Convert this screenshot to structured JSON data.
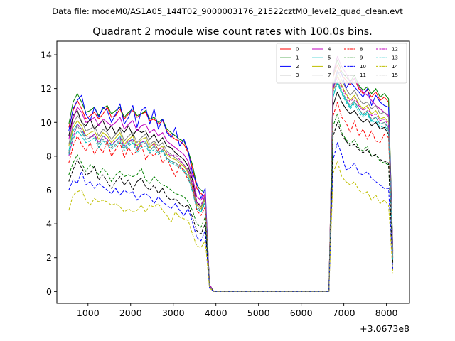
{
  "suptitle": "Data file: modeM0/AS1A05_144T02_9000003176_21522cztM0_level2_quad_clean.evt",
  "chart_data": {
    "type": "line",
    "title": "Quadrant 2 module wise count rates with 100.0s bins.",
    "xlabel": "",
    "ylabel": "",
    "x_offset_label": "+3.0673e8",
    "xlim": [
      270,
      8540
    ],
    "ylim": [
      -0.7,
      14.8
    ],
    "xticks": [
      1000,
      2000,
      3000,
      4000,
      5000,
      6000,
      7000,
      8000
    ],
    "xtick_labels": [
      "1000",
      "2000",
      "3000",
      "4000",
      "5000",
      "6000",
      "7000",
      "8000"
    ],
    "yticks": [
      0,
      2,
      4,
      6,
      8,
      10,
      12,
      14
    ],
    "ytick_labels": [
      "0",
      "2",
      "4",
      "6",
      "8",
      "10",
      "12",
      "14"
    ],
    "grid": false,
    "legend_position": "top-right",
    "legend_columns": 4,
    "x": [
      550,
      650,
      750,
      850,
      950,
      1050,
      1150,
      1250,
      1350,
      1450,
      1550,
      1650,
      1750,
      1850,
      1950,
      2050,
      2150,
      2250,
      2350,
      2450,
      2550,
      2650,
      2750,
      2850,
      2950,
      3050,
      3150,
      3250,
      3350,
      3450,
      3550,
      3650,
      3750,
      3850,
      3950,
      4050,
      6650,
      6750,
      6850,
      6950,
      7050,
      7150,
      7250,
      7350,
      7450,
      7550,
      7650,
      7750,
      7850,
      7950,
      8050,
      8150
    ],
    "series": [
      {
        "name": "0",
        "color": "#ff0000",
        "dash": "solid",
        "values": [
          9.7,
          10.7,
          11.3,
          10.8,
          10.2,
          10.4,
          10.6,
          10.2,
          10.5,
          10.9,
          10.3,
          10.4,
          10.8,
          10.2,
          10.5,
          10.7,
          10.3,
          10.5,
          10.6,
          10.1,
          10.2,
          9.9,
          10.1,
          9.5,
          9.2,
          9.0,
          8.9,
          8.7,
          8.2,
          7.3,
          6.1,
          5.8,
          5.6,
          0.4,
          0.0,
          0.0,
          0.0,
          12.7,
          13.4,
          12.8,
          12.5,
          12.2,
          12.6,
          12.0,
          11.7,
          11.9,
          11.5,
          11.8,
          11.3,
          11.5,
          11.2,
          2.4
        ]
      },
      {
        "name": "1",
        "color": "#008000",
        "dash": "solid",
        "values": [
          9.9,
          11.2,
          11.7,
          11.2,
          10.6,
          10.7,
          10.9,
          10.4,
          10.8,
          11.0,
          10.5,
          10.7,
          10.9,
          10.3,
          10.6,
          10.8,
          10.4,
          10.5,
          10.7,
          10.2,
          10.3,
          10.0,
          10.2,
          9.6,
          9.4,
          9.2,
          9.0,
          8.9,
          8.3,
          7.5,
          6.3,
          6.0,
          5.8,
          0.4,
          0.0,
          0.0,
          0.0,
          12.8,
          13.7,
          13.0,
          12.7,
          12.4,
          12.8,
          12.2,
          11.9,
          12.1,
          11.7,
          12.0,
          11.5,
          11.7,
          11.4,
          2.5
        ]
      },
      {
        "name": "2",
        "color": "#0000ff",
        "dash": "solid",
        "values": [
          9.5,
          10.8,
          11.3,
          11.6,
          10.5,
          10.1,
          10.9,
          10.3,
          10.9,
          10.7,
          10.0,
          10.5,
          11.1,
          9.9,
          10.3,
          11.0,
          9.7,
          10.7,
          10.9,
          9.9,
          10.8,
          9.6,
          10.2,
          9.4,
          9.1,
          9.7,
          8.6,
          9.0,
          8.3,
          7.0,
          6.4,
          5.5,
          6.1,
          0.4,
          0.0,
          0.0,
          0.0,
          12.0,
          13.0,
          12.9,
          12.0,
          12.4,
          12.1,
          11.8,
          11.5,
          12.0,
          11.0,
          11.6,
          11.2,
          11.0,
          10.9,
          2.3
        ]
      },
      {
        "name": "3",
        "color": "#000000",
        "dash": "solid",
        "values": [
          9.2,
          10.4,
          10.7,
          10.0,
          9.8,
          10.2,
          9.6,
          9.9,
          10.1,
          9.5,
          9.8,
          9.3,
          9.7,
          9.4,
          9.8,
          9.2,
          9.6,
          9.4,
          9.5,
          9.0,
          9.3,
          8.8,
          9.1,
          8.6,
          8.5,
          8.2,
          8.0,
          7.8,
          7.4,
          6.6,
          5.3,
          5.0,
          5.6,
          0.4,
          0.0,
          0.0,
          0.0,
          11.0,
          11.8,
          11.2,
          10.8,
          10.5,
          10.7,
          10.3,
          10.0,
          10.2,
          9.8,
          10.0,
          9.6,
          9.7,
          9.3,
          2.2
        ]
      },
      {
        "name": "4",
        "color": "#bf00bf",
        "dash": "solid",
        "values": [
          9.0,
          10.2,
          10.9,
          10.6,
          10.0,
          10.1,
          10.3,
          9.8,
          10.2,
          10.0,
          9.8,
          10.0,
          10.3,
          9.6,
          9.9,
          10.1,
          9.5,
          9.8,
          9.9,
          9.4,
          9.6,
          9.2,
          9.4,
          8.9,
          8.7,
          8.5,
          8.3,
          8.1,
          7.7,
          6.8,
          5.6,
          5.4,
          5.8,
          0.4,
          0.0,
          0.0,
          0.0,
          12.9,
          13.9,
          13.3,
          12.9,
          12.4,
          12.6,
          12.1,
          11.8,
          11.6,
          11.3,
          11.0,
          10.8,
          10.6,
          10.4,
          2.4
        ]
      },
      {
        "name": "5",
        "color": "#00bfbf",
        "dash": "solid",
        "values": [
          8.3,
          9.5,
          9.9,
          9.6,
          9.0,
          9.1,
          9.3,
          8.7,
          9.2,
          9.0,
          8.6,
          8.9,
          9.2,
          8.5,
          8.8,
          9.0,
          8.4,
          8.8,
          8.9,
          8.3,
          8.6,
          8.2,
          8.4,
          7.9,
          7.7,
          7.6,
          7.4,
          7.2,
          6.8,
          6.0,
          4.9,
          4.7,
          5.3,
          0.3,
          0.0,
          0.0,
          0.0,
          11.5,
          12.4,
          11.8,
          11.3,
          10.9,
          11.2,
          10.8,
          10.4,
          10.6,
          10.1,
          10.3,
          9.9,
          10.0,
          9.7,
          2.0
        ]
      },
      {
        "name": "6",
        "color": "#bfbf00",
        "dash": "solid",
        "values": [
          8.6,
          9.7,
          10.1,
          9.8,
          9.2,
          9.4,
          9.5,
          9.0,
          9.4,
          9.2,
          8.8,
          9.1,
          9.4,
          8.7,
          9.0,
          9.2,
          8.6,
          9.0,
          9.1,
          8.5,
          8.8,
          8.4,
          8.6,
          8.1,
          7.9,
          7.8,
          7.6,
          7.4,
          7.0,
          6.2,
          5.1,
          4.9,
          5.5,
          0.3,
          0.0,
          0.0,
          0.0,
          11.9,
          12.8,
          12.2,
          11.7,
          11.3,
          11.6,
          11.1,
          10.8,
          11.0,
          10.5,
          10.7,
          10.2,
          10.3,
          10.0,
          2.1
        ]
      },
      {
        "name": "7",
        "color": "#808080",
        "dash": "solid",
        "values": [
          8.7,
          9.9,
          10.4,
          10.1,
          9.5,
          9.6,
          9.8,
          9.2,
          9.6,
          9.4,
          9.0,
          9.3,
          9.6,
          8.9,
          9.2,
          9.4,
          8.8,
          9.1,
          9.3,
          8.7,
          8.9,
          8.6,
          8.8,
          8.3,
          8.1,
          7.9,
          7.7,
          7.5,
          7.1,
          6.3,
          5.2,
          5.0,
          5.6,
          0.3,
          0.0,
          0.0,
          0.0,
          12.2,
          13.1,
          12.5,
          12.0,
          11.6,
          11.9,
          11.4,
          11.1,
          11.2,
          10.8,
          11.0,
          10.5,
          10.6,
          10.3,
          2.2
        ]
      },
      {
        "name": "8",
        "color": "#ff0000",
        "dash": "dashed",
        "values": [
          7.6,
          8.6,
          9.2,
          8.7,
          8.3,
          8.8,
          8.1,
          8.6,
          8.2,
          8.9,
          8.0,
          8.4,
          8.8,
          7.9,
          8.5,
          8.1,
          8.3,
          8.7,
          7.8,
          8.2,
          8.0,
          8.4,
          7.6,
          7.9,
          7.3,
          6.8,
          7.5,
          7.1,
          6.6,
          6.2,
          4.8,
          4.5,
          5.0,
          0.3,
          0.0,
          0.0,
          0.0,
          10.4,
          11.2,
          10.3,
          10.0,
          9.4,
          10.1,
          9.2,
          9.6,
          9.0,
          9.5,
          8.9,
          8.8,
          9.3,
          9.1,
          1.9
        ]
      },
      {
        "name": "9",
        "color": "#008000",
        "dash": "dashed",
        "values": [
          6.9,
          7.6,
          8.1,
          7.6,
          7.1,
          7.5,
          7.3,
          6.9,
          7.3,
          7.0,
          6.5,
          6.9,
          7.1,
          6.8,
          6.9,
          6.8,
          6.9,
          7.3,
          6.6,
          6.4,
          6.8,
          6.5,
          6.3,
          6.2,
          6.0,
          5.8,
          5.7,
          5.6,
          5.3,
          4.8,
          4.0,
          3.8,
          4.4,
          0.3,
          0.0,
          0.0,
          0.0,
          9.8,
          10.5,
          9.4,
          9.0,
          8.7,
          9.0,
          8.5,
          8.3,
          8.6,
          8.0,
          8.1,
          7.7,
          7.6,
          7.5,
          1.7
        ]
      },
      {
        "name": "10",
        "color": "#0000ff",
        "dash": "dashed",
        "values": [
          6.0,
          6.6,
          6.4,
          7.1,
          6.3,
          6.5,
          6.1,
          6.4,
          6.2,
          6.0,
          5.8,
          6.1,
          5.7,
          6.0,
          5.8,
          5.9,
          5.4,
          5.7,
          5.8,
          5.6,
          5.2,
          5.6,
          5.3,
          5.1,
          4.9,
          5.2,
          4.8,
          4.5,
          4.9,
          4.1,
          3.2,
          3.0,
          3.6,
          0.2,
          0.0,
          0.0,
          0.0,
          7.8,
          8.8,
          8.1,
          7.2,
          7.3,
          7.6,
          7.0,
          6.9,
          7.1,
          6.7,
          6.5,
          6.3,
          6.1,
          6.1,
          1.3
        ]
      },
      {
        "name": "11",
        "color": "#000000",
        "dash": "dashed",
        "values": [
          6.5,
          7.2,
          7.8,
          7.3,
          6.9,
          7.0,
          7.4,
          6.6,
          6.9,
          6.5,
          6.1,
          6.5,
          6.8,
          6.3,
          6.6,
          6.0,
          6.5,
          6.7,
          6.2,
          6.0,
          6.3,
          5.8,
          6.1,
          5.6,
          5.4,
          5.5,
          5.2,
          5.0,
          5.1,
          4.4,
          3.6,
          3.4,
          4.0,
          0.3,
          0.0,
          0.0,
          0.0,
          9.2,
          10.0,
          9.3,
          8.9,
          8.6,
          8.7,
          8.4,
          8.2,
          8.4,
          8.0,
          8.1,
          7.8,
          7.7,
          7.6,
          1.6
        ]
      },
      {
        "name": "12",
        "color": "#bf00bf",
        "dash": "dashed",
        "values": [
          8.0,
          9.1,
          9.9,
          9.6,
          9.2,
          9.1,
          9.3,
          8.8,
          9.2,
          9.0,
          8.7,
          8.9,
          9.1,
          8.6,
          8.9,
          9.0,
          8.5,
          8.9,
          8.8,
          8.6,
          8.7,
          8.4,
          8.5,
          8.2,
          8.0,
          8.1,
          7.8,
          7.5,
          7.2,
          6.4,
          5.3,
          5.1,
          5.7,
          0.3,
          0.0,
          0.0,
          0.0,
          12.0,
          12.7,
          12.1,
          11.6,
          11.2,
          11.5,
          11.0,
          10.7,
          10.9,
          10.4,
          10.5,
          10.1,
          10.2,
          9.8,
          2.0
        ]
      },
      {
        "name": "13",
        "color": "#00bfbf",
        "dash": "dashed",
        "values": [
          8.1,
          9.0,
          9.5,
          9.2,
          8.8,
          8.9,
          9.1,
          8.5,
          8.9,
          8.7,
          8.4,
          8.6,
          8.9,
          8.3,
          8.6,
          8.8,
          8.2,
          8.5,
          8.6,
          8.2,
          8.4,
          8.1,
          8.3,
          7.8,
          7.6,
          7.5,
          7.3,
          7.1,
          6.7,
          5.9,
          4.9,
          4.7,
          5.2,
          0.3,
          0.0,
          0.0,
          0.0,
          11.6,
          12.3,
          11.7,
          11.2,
          10.8,
          11.1,
          10.6,
          10.3,
          10.5,
          10.0,
          10.1,
          9.7,
          9.8,
          9.5,
          1.9
        ]
      },
      {
        "name": "14",
        "color": "#bfbf00",
        "dash": "dashed",
        "values": [
          4.8,
          5.7,
          5.9,
          6.0,
          5.4,
          5.1,
          5.5,
          5.3,
          5.4,
          5.3,
          5.1,
          5.2,
          5.0,
          4.7,
          4.9,
          4.7,
          4.8,
          5.1,
          4.7,
          5.1,
          5.0,
          5.2,
          4.8,
          4.5,
          4.1,
          4.7,
          4.4,
          4.3,
          4.2,
          3.4,
          2.7,
          2.6,
          3.0,
          0.2,
          0.0,
          0.0,
          0.0,
          7.0,
          7.7,
          6.8,
          6.5,
          6.3,
          6.5,
          6.0,
          5.8,
          5.9,
          5.4,
          5.7,
          5.2,
          5.4,
          5.1,
          1.1
        ]
      },
      {
        "name": "15",
        "color": "#808080",
        "dash": "dashed",
        "values": [
          8.2,
          9.3,
          9.8,
          9.4,
          9.0,
          9.1,
          9.2,
          8.7,
          9.0,
          8.8,
          8.5,
          8.7,
          9.0,
          8.4,
          8.7,
          8.9,
          8.4,
          8.7,
          8.8,
          8.3,
          8.6,
          8.2,
          8.4,
          7.9,
          7.7,
          7.6,
          7.4,
          7.2,
          6.8,
          6.0,
          5.0,
          4.8,
          5.4,
          0.3,
          0.0,
          0.0,
          0.0,
          11.8,
          12.5,
          11.9,
          11.4,
          11.0,
          11.3,
          10.8,
          10.5,
          10.7,
          10.2,
          10.3,
          9.9,
          10.0,
          9.6,
          2.0
        ]
      }
    ]
  }
}
